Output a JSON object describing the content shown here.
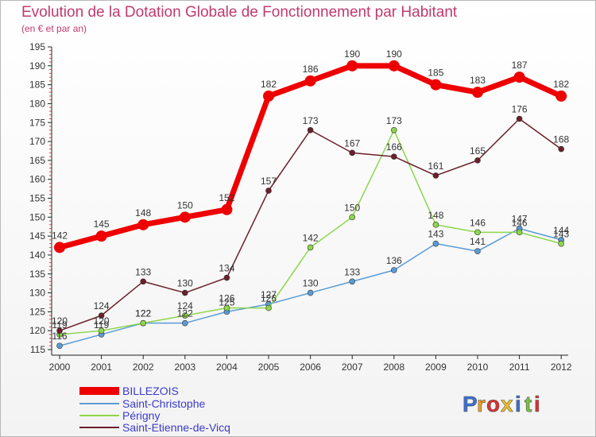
{
  "chart_data": {
    "type": "line",
    "title": "Evolution de la Dotation Globale de Fonctionnement par Habitant",
    "subtitle": "(en € et par an)",
    "xlabel": "",
    "ylabel": "",
    "categories": [
      "2000",
      "2001",
      "2002",
      "2003",
      "2004",
      "2005",
      "2006",
      "2007",
      "2008",
      "2009",
      "2010",
      "2011",
      "2012"
    ],
    "ylim": [
      115,
      195
    ],
    "yticks": [
      115,
      120,
      125,
      130,
      135,
      140,
      145,
      150,
      155,
      160,
      165,
      170,
      175,
      180,
      185,
      190,
      195
    ],
    "grid": false,
    "legend_position": "bottom-left",
    "series": [
      {
        "name": "BILLEZOIS",
        "color": "#ee0000",
        "legend_color": "#3a3acc",
        "values": [
          142,
          145,
          148,
          150,
          152,
          182,
          186,
          190,
          190,
          185,
          183,
          187,
          182
        ]
      },
      {
        "name": "Saint-Christophe",
        "color": "#5b9bd5",
        "legend_color": "#3a3acc",
        "values": [
          116,
          119,
          122,
          122,
          125,
          127,
          130,
          133,
          136,
          143,
          141,
          147,
          144
        ]
      },
      {
        "name": "Périgny",
        "color": "#8ed64a",
        "legend_color": "#3a3acc",
        "values": [
          119,
          120,
          122,
          124,
          126,
          126,
          142,
          150,
          173,
          148,
          146,
          146,
          143
        ]
      },
      {
        "name": "Saint-Etienne-de-Vicq",
        "color": "#6b1f2a",
        "legend_color": "#3a3acc",
        "values": [
          120,
          124,
          133,
          130,
          134,
          157,
          173,
          167,
          166,
          161,
          165,
          176,
          168
        ]
      }
    ]
  },
  "logo": {
    "letters": [
      "P",
      "r",
      "o",
      "x",
      "i",
      "t",
      "i"
    ],
    "colors": [
      "#3b6fd4",
      "#f0a020",
      "#e03030",
      "#f0c020",
      "#3b6fd4",
      "#7ac143",
      "#e03030"
    ]
  }
}
